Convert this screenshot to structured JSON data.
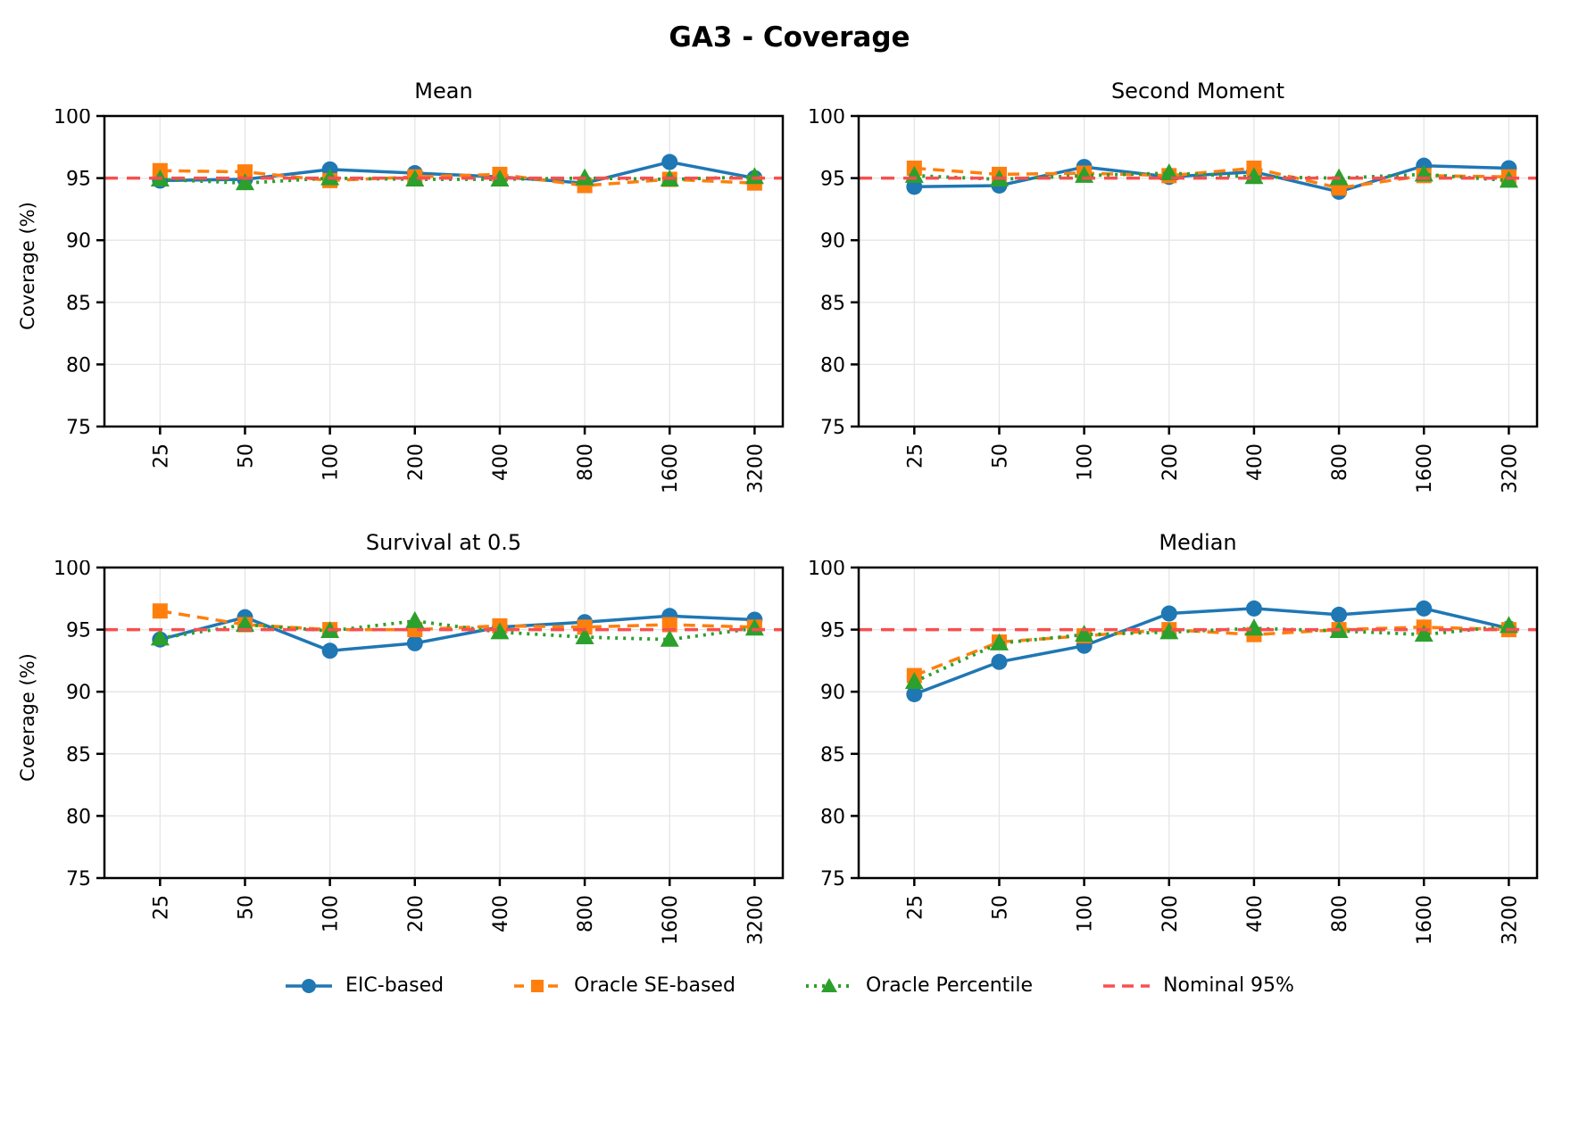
{
  "page_title": "GA3 - Coverage",
  "axis": {
    "ylabel": "Coverage (%)",
    "yticks": [
      100,
      95,
      90,
      85,
      80,
      75
    ],
    "ylim": [
      75,
      100
    ],
    "categories": [
      "25",
      "50",
      "100",
      "200",
      "400",
      "800",
      "1600",
      "3200"
    ]
  },
  "colors": {
    "eic": "#1f77b4",
    "se": "#ff7f0e",
    "pct": "#2ca02c",
    "nominal": "#f94f4f",
    "grid": "#e5e5e5",
    "spine": "#000000"
  },
  "legend": [
    {
      "id": "eic",
      "label": "EIC-based"
    },
    {
      "id": "se",
      "label": "Oracle SE-based"
    },
    {
      "id": "pct",
      "label": "Oracle Percentile"
    },
    {
      "id": "nominal",
      "label": "Nominal 95%"
    }
  ],
  "chart_data": [
    {
      "type": "line",
      "title": "Mean",
      "xlabel": "",
      "ylabel": "Coverage (%)",
      "ylim": [
        75,
        100
      ],
      "yticks": [
        75,
        80,
        85,
        90,
        95,
        100
      ],
      "grid": true,
      "nominal": 95,
      "categories": [
        "25",
        "50",
        "100",
        "200",
        "400",
        "800",
        "1600",
        "3200"
      ],
      "series": [
        {
          "id": "eic",
          "name": "EIC-based",
          "values": [
            94.8,
            94.9,
            95.7,
            95.4,
            95.1,
            94.6,
            96.3,
            95.0
          ]
        },
        {
          "id": "se",
          "name": "Oracle SE-based",
          "values": [
            95.6,
            95.5,
            94.8,
            95.1,
            95.3,
            94.4,
            94.9,
            94.6
          ]
        },
        {
          "id": "pct",
          "name": "Oracle Percentile",
          "values": [
            94.9,
            94.6,
            95.0,
            94.9,
            94.9,
            95.0,
            94.9,
            95.1
          ]
        }
      ]
    },
    {
      "type": "line",
      "title": "Second Moment",
      "xlabel": "",
      "ylabel": "Coverage (%)",
      "ylim": [
        75,
        100
      ],
      "yticks": [
        75,
        80,
        85,
        90,
        95,
        100
      ],
      "grid": true,
      "nominal": 95,
      "categories": [
        "25",
        "50",
        "100",
        "200",
        "400",
        "800",
        "1600",
        "3200"
      ],
      "series": [
        {
          "id": "eic",
          "name": "EIC-based",
          "values": [
            94.3,
            94.4,
            95.9,
            95.1,
            95.5,
            93.9,
            96.0,
            95.8
          ]
        },
        {
          "id": "se",
          "name": "Oracle SE-based",
          "values": [
            95.8,
            95.3,
            95.4,
            95.2,
            95.8,
            94.2,
            95.2,
            95.1
          ]
        },
        {
          "id": "pct",
          "name": "Oracle Percentile",
          "values": [
            95.2,
            94.9,
            95.2,
            95.4,
            95.1,
            95.0,
            95.3,
            94.8
          ]
        }
      ]
    },
    {
      "type": "line",
      "title": "Survival at 0.5",
      "xlabel": "",
      "ylabel": "Coverage (%)",
      "ylim": [
        75,
        100
      ],
      "yticks": [
        75,
        80,
        85,
        90,
        95,
        100
      ],
      "grid": true,
      "nominal": 95,
      "categories": [
        "25",
        "50",
        "100",
        "200",
        "400",
        "800",
        "1600",
        "3200"
      ],
      "series": [
        {
          "id": "eic",
          "name": "EIC-based",
          "values": [
            94.2,
            96.0,
            93.3,
            93.9,
            95.2,
            95.6,
            96.1,
            95.8
          ]
        },
        {
          "id": "se",
          "name": "Oracle SE-based",
          "values": [
            96.5,
            95.4,
            95.0,
            95.0,
            95.3,
            95.2,
            95.4,
            95.2
          ]
        },
        {
          "id": "pct",
          "name": "Oracle Percentile",
          "values": [
            94.3,
            95.4,
            94.9,
            95.7,
            94.8,
            94.4,
            94.2,
            95.1
          ]
        }
      ]
    },
    {
      "type": "line",
      "title": "Median",
      "xlabel": "",
      "ylabel": "Coverage (%)",
      "ylim": [
        75,
        100
      ],
      "yticks": [
        75,
        80,
        85,
        90,
        95,
        100
      ],
      "grid": true,
      "nominal": 95,
      "categories": [
        "25",
        "50",
        "100",
        "200",
        "400",
        "800",
        "1600",
        "3200"
      ],
      "series": [
        {
          "id": "eic",
          "name": "EIC-based",
          "values": [
            89.8,
            92.4,
            93.7,
            96.3,
            96.7,
            96.2,
            96.7,
            95.1
          ]
        },
        {
          "id": "se",
          "name": "Oracle SE-based",
          "values": [
            91.3,
            94.0,
            94.5,
            95.0,
            94.6,
            95.0,
            95.2,
            95.0
          ]
        },
        {
          "id": "pct",
          "name": "Oracle Percentile",
          "values": [
            90.8,
            93.9,
            94.6,
            94.8,
            95.1,
            94.9,
            94.6,
            95.3
          ]
        }
      ]
    }
  ]
}
